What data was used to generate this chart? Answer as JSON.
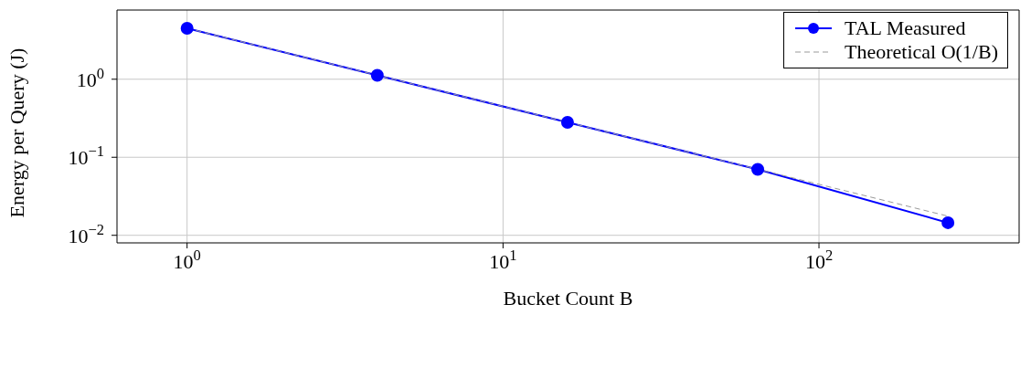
{
  "chart_data": {
    "type": "line",
    "xlabel": "Bucket Count B",
    "ylabel": "Energy per Query (J)",
    "log": "xy",
    "grid": true,
    "legend": "top right",
    "xlim": [
      0.6,
      430
    ],
    "ylim": [
      0.008,
      7.7
    ],
    "xticks": [
      {
        "value": 1,
        "label": "10$^{0}$"
      },
      {
        "value": 10,
        "label": "10$^{1}$"
      },
      {
        "value": 100,
        "label": "10$^{2}$"
      }
    ],
    "yticks": [
      {
        "value": 0.01,
        "label": "10$^{−2}$"
      },
      {
        "value": 0.1,
        "label": "10$^{−1}$"
      },
      {
        "value": 1,
        "label": "10$^{0}$"
      }
    ],
    "series": [
      {
        "name": "TAL Measured",
        "color": "#0000ff",
        "x": [
          1,
          4,
          16,
          64,
          256
        ],
        "values": [
          4.5,
          1.12,
          0.28,
          0.07,
          0.0145
        ],
        "marker": "circle",
        "line_style": "solid"
      },
      {
        "name": "Theoretical O(1/B)",
        "color": "#999999",
        "x": [
          1,
          4,
          16,
          64,
          256
        ],
        "values": [
          4.5,
          1.125,
          0.281,
          0.0703,
          0.0176
        ],
        "marker": "none",
        "line_style": "dashed"
      }
    ]
  }
}
